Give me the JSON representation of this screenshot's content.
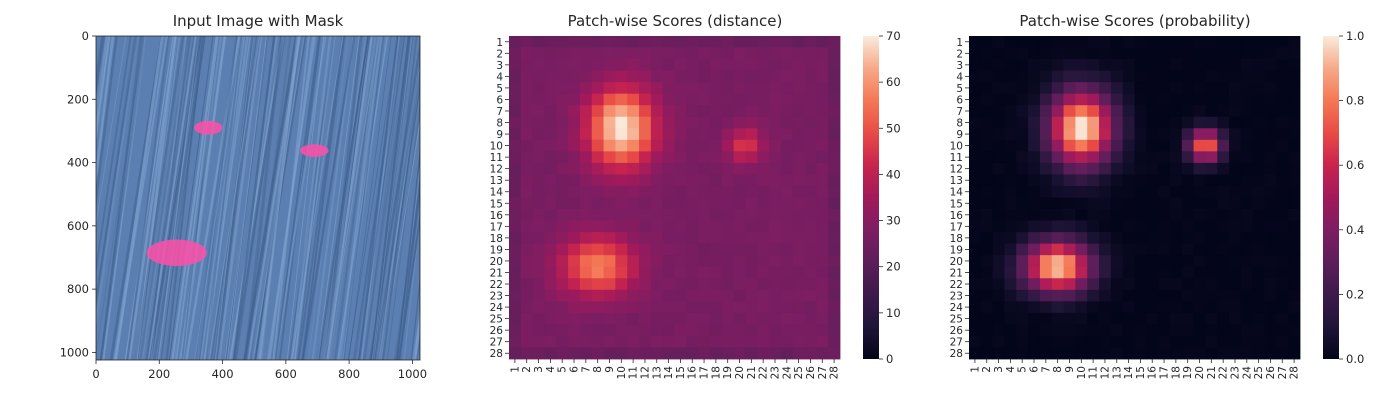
{
  "chart_data": [
    {
      "type": "image",
      "title": "Input Image with Mask",
      "xlim": [
        0,
        1024
      ],
      "ylim": [
        0,
        1024
      ],
      "y_inverted": true,
      "xticks": [
        0,
        200,
        400,
        600,
        800,
        1000
      ],
      "yticks": [
        0,
        200,
        400,
        600,
        800,
        1000
      ],
      "background": "fabric texture, blue-grey diagonal streaks",
      "mask_color": "#ff4fa8",
      "mask_regions": [
        {
          "cx": 355,
          "cy": 290,
          "rx": 45,
          "ry": 22
        },
        {
          "cx": 690,
          "cy": 362,
          "rx": 45,
          "ry": 20
        },
        {
          "cx": 255,
          "cy": 685,
          "rx": 95,
          "ry": 42
        }
      ]
    },
    {
      "type": "heatmap",
      "title": "Patch-wise Scores (distance)",
      "rows": 28,
      "cols": 28,
      "colormap": "rocket",
      "vmin": 0,
      "vmax": 70,
      "colorbar_ticks": [
        0,
        10,
        20,
        30,
        40,
        50,
        60,
        70
      ],
      "baseline": 27,
      "border_baseline": 24,
      "hotspots": [
        {
          "row": 8.5,
          "col": 10,
          "peak": 70,
          "sigma_row": 2.4,
          "sigma_col": 2.0
        },
        {
          "row": 20.5,
          "col": 8,
          "peak": 57,
          "sigma_row": 1.8,
          "sigma_col": 2.2
        },
        {
          "row": 10,
          "col": 20.5,
          "peak": 45,
          "sigma_row": 1.1,
          "sigma_col": 1.1
        }
      ]
    },
    {
      "type": "heatmap",
      "title": "Patch-wise Scores (probability)",
      "rows": 28,
      "cols": 28,
      "colormap": "rocket",
      "vmin": 0,
      "vmax": 1,
      "colorbar_ticks": [
        "0.0",
        "0.2",
        "0.4",
        "0.6",
        "0.8",
        "1.0"
      ],
      "baseline": 0.0,
      "hotspots": [
        {
          "row": 8.5,
          "col": 10,
          "peak": 1.0,
          "sigma_row": 2.3,
          "sigma_col": 1.9
        },
        {
          "row": 20.5,
          "col": 8,
          "peak": 0.95,
          "sigma_row": 1.6,
          "sigma_col": 2.0
        },
        {
          "row": 10,
          "col": 20.5,
          "peak": 0.8,
          "sigma_row": 1.0,
          "sigma_col": 1.0
        }
      ]
    }
  ]
}
